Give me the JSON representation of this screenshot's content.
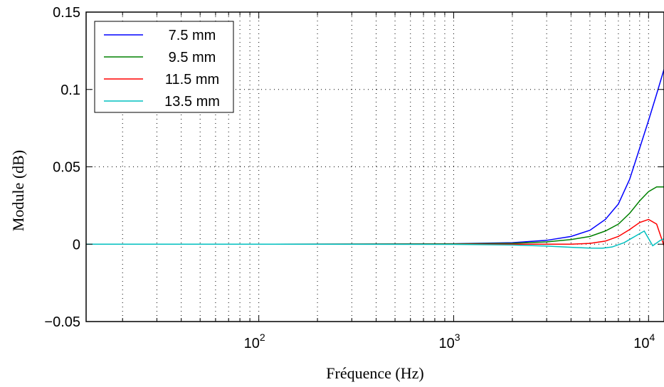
{
  "chart_data": {
    "type": "line",
    "title": "",
    "xlabel": "Fréquence (Hz)",
    "ylabel": "Module (dB)",
    "xscale": "log",
    "xlim": [
      13,
      12000
    ],
    "ylim": [
      -0.05,
      0.15
    ],
    "grid": true,
    "legend_position": "top-left",
    "x_ticks": [
      {
        "value": 100,
        "base": "10",
        "exp": "2"
      },
      {
        "value": 1000,
        "base": "10",
        "exp": "3"
      },
      {
        "value": 10000,
        "base": "10",
        "exp": "4"
      }
    ],
    "y_ticks": [
      {
        "value": -0.05,
        "label": "−0.05"
      },
      {
        "value": 0,
        "label": "0"
      },
      {
        "value": 0.05,
        "label": "0.05"
      },
      {
        "value": 0.1,
        "label": "0.1"
      },
      {
        "value": 0.15,
        "label": "0.15"
      }
    ],
    "series": [
      {
        "name": "7.5 mm",
        "color": "#0000ff",
        "points": [
          [
            13,
            0
          ],
          [
            100,
            0
          ],
          [
            500,
            0.0001
          ],
          [
            1000,
            0.0003
          ],
          [
            2000,
            0.001
          ],
          [
            3000,
            0.0025
          ],
          [
            4000,
            0.005
          ],
          [
            5000,
            0.009
          ],
          [
            6000,
            0.016
          ],
          [
            7000,
            0.026
          ],
          [
            8000,
            0.042
          ],
          [
            9000,
            0.062
          ],
          [
            10000,
            0.08
          ],
          [
            11000,
            0.097
          ],
          [
            12000,
            0.113
          ]
        ]
      },
      {
        "name": "9.5 mm",
        "color": "#008000",
        "points": [
          [
            13,
            0
          ],
          [
            100,
            0
          ],
          [
            1000,
            0.0002
          ],
          [
            2000,
            0.0006
          ],
          [
            3000,
            0.0015
          ],
          [
            4000,
            0.003
          ],
          [
            5000,
            0.005
          ],
          [
            6000,
            0.0085
          ],
          [
            7000,
            0.013
          ],
          [
            8000,
            0.02
          ],
          [
            9000,
            0.028
          ],
          [
            10000,
            0.034
          ],
          [
            11000,
            0.037
          ],
          [
            12000,
            0.037
          ]
        ]
      },
      {
        "name": "11.5 mm",
        "color": "#ff0000",
        "points": [
          [
            13,
            0
          ],
          [
            100,
            0
          ],
          [
            1000,
            0
          ],
          [
            2000,
            0
          ],
          [
            3000,
            0
          ],
          [
            4000,
            0
          ],
          [
            5000,
            0.0005
          ],
          [
            6000,
            0.002
          ],
          [
            7000,
            0.005
          ],
          [
            8000,
            0.0095
          ],
          [
            9000,
            0.014
          ],
          [
            10000,
            0.016
          ],
          [
            11000,
            0.013
          ],
          [
            12000,
            -0.001
          ]
        ]
      },
      {
        "name": "13.5 mm",
        "color": "#00bfbf",
        "points": [
          [
            13,
            0
          ],
          [
            100,
            0
          ],
          [
            1000,
            -0.0001
          ],
          [
            2000,
            -0.0005
          ],
          [
            3000,
            -0.0012
          ],
          [
            4000,
            -0.002
          ],
          [
            5000,
            -0.0025
          ],
          [
            5800,
            -0.0026
          ],
          [
            6500,
            -0.0018
          ],
          [
            7500,
            0.001
          ],
          [
            8500,
            0.005
          ],
          [
            9500,
            0.0085
          ],
          [
            10500,
            -0.001
          ],
          [
            11500,
            0.0025
          ],
          [
            12000,
            0.0035
          ]
        ]
      }
    ]
  }
}
